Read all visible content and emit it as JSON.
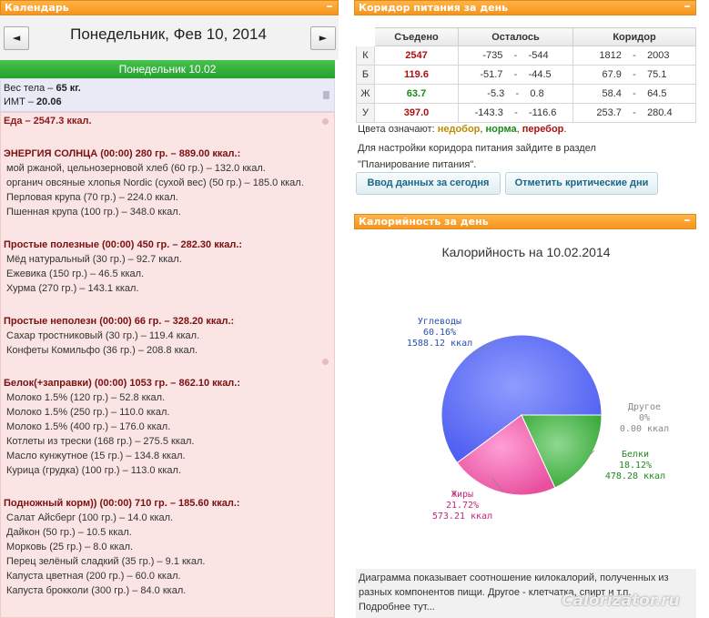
{
  "calendar_panel": {
    "title": "Календарь",
    "minimize": "–"
  },
  "nav": {
    "prev": "◄",
    "next": "►",
    "date_title": "Понедельник, Фев 10, 2014"
  },
  "day_bar": "Понедельник 10.02",
  "body": {
    "weight_label": "Вес тела – ",
    "weight_value": "65 кг.",
    "bmi_label": "ИМТ – ",
    "bmi_value": "20.06"
  },
  "food": {
    "total": "Еда – 2547.3 ккал.",
    "meals": [
      {
        "title": "ЭНЕРГИЯ СОЛНЦА (00:00) 280 гр. – 889.00 ккал.:",
        "items": [
          "мой ржаной, цельнозерновой хлеб (60 гр.) – 132.0 ккал.",
          "органич овсяные хлопья Nordic (сухой вес) (50 гр.) – 185.0 ккал.",
          "Перловая крупа (70 гр.) – 224.0 ккал.",
          "Пшенная крупа (100 гр.) – 348.0 ккал."
        ]
      },
      {
        "title": "Простые полезные (00:00) 450 гр. – 282.30 ккал.:",
        "items": [
          "Мёд натуральный (30 гр.) – 92.7 ккал.",
          "Ежевика (150 гр.) – 46.5 ккал.",
          "Хурма (270 гр.) – 143.1 ккал."
        ]
      },
      {
        "title": "Простые неполезн (00:00) 66 гр. – 328.20 ккал.:",
        "items": [
          "Сахар тростниковый (30 гр.) – 119.4 ккал.",
          "Конфеты Комильфо (36 гр.) – 208.8 ккал."
        ]
      },
      {
        "title": "Белок(+заправки) (00:00) 1053 гр. – 862.10 ккал.:",
        "items": [
          "Молоко 1.5% (120 гр.) – 52.8 ккал.",
          "Молоко 1.5% (250 гр.) – 110.0 ккал.",
          "Молоко 1.5% (400 гр.) – 176.0 ккал.",
          "Котлеты из трески (168 гр.) – 275.5 ккал.",
          "Масло кунжутное (15 гр.) – 134.8 ккал.",
          "Курица (грудка) (100 гр.) – 113.0 ккал."
        ]
      },
      {
        "title": "Подножный корм)) (00:00) 710 гр. – 185.60 ккал.:",
        "items": [
          "Салат Айсберг (100 гр.) – 14.0 ккал.",
          "Дайкон (50 гр.) – 10.5 ккал.",
          "Морковь (25 гр.) – 8.0 ккал.",
          "Перец зелёный сладкий (35 гр.) – 9.1 ккал.",
          "Капуста цветная (200 гр.) – 60.0 ккал.",
          "Капуста брокколи (300 гр.) – 84.0 ккал."
        ]
      }
    ]
  },
  "corridor_panel": {
    "title": "Коридор питания за день",
    "minimize": "–"
  },
  "corridor_table": {
    "headers": [
      "Съедено",
      "Осталось",
      "Коридор"
    ],
    "rows": [
      {
        "label": "К",
        "eaten": "2547",
        "eaten_color": "#b01010",
        "rem_min": "-735",
        "rem_max": "-544",
        "cor_min": "1812",
        "cor_max": "2003"
      },
      {
        "label": "Б",
        "eaten": "119.6",
        "eaten_color": "#b01010",
        "rem_min": "-51.7",
        "rem_max": "-44.5",
        "cor_min": "67.9",
        "cor_max": "75.1"
      },
      {
        "label": "Ж",
        "eaten": "63.7",
        "eaten_color": "#1a8a1a",
        "rem_min": "-5.3",
        "rem_max": "0.8",
        "cor_min": "58.4",
        "cor_max": "64.5"
      },
      {
        "label": "У",
        "eaten": "397.0",
        "eaten_color": "#b01010",
        "rem_min": "-143.3",
        "rem_max": "-116.6",
        "cor_min": "253.7",
        "cor_max": "280.4"
      }
    ],
    "dash": "-"
  },
  "legend": {
    "prefix": "Цвета означают: ",
    "under": "недобор",
    "under_color": "#c08a00",
    "norm": "норма",
    "norm_color": "#1a8a1a",
    "over": "перебор",
    "over_color": "#b01010",
    "sep": ", ",
    "end": "."
  },
  "hint": {
    "line1": "Для настройки коридора питания зайдите в раздел",
    "line2": "\"Планирование питания\"."
  },
  "buttons": {
    "enter_today": "Ввод данных за сегодня",
    "mark_days": "Отметить критические дни"
  },
  "calories_panel": {
    "title": "Калорийность за день",
    "minimize": "–"
  },
  "chart_data": {
    "type": "pie",
    "title": "Калорийность на 10.02.2014",
    "slices": [
      {
        "name": "Углеводы",
        "percent": 60.16,
        "pct_label": "60.16%",
        "kcal_label": "1588.12 ккал",
        "color": "#5f72ff"
      },
      {
        "name": "Белки",
        "percent": 18.12,
        "pct_label": "18.12%",
        "kcal_label": "478.28 ккал",
        "color": "#45b845"
      },
      {
        "name": "Жиры",
        "percent": 21.72,
        "pct_label": "21.72%",
        "kcal_label": "573.21 ккал",
        "color": "#f06ab9"
      },
      {
        "name": "Другое",
        "percent": 0,
        "pct_label": "0%",
        "kcal_label": "0.00 ккал",
        "color": "#999999"
      }
    ],
    "label_colors": {
      "Углеводы": "#2a4fb0",
      "Белки": "#228822",
      "Жиры": "#c2257a",
      "Другое": "#888888"
    }
  },
  "chart_foot": {
    "line1": "Диаграмма показывает соотношение килокалорий, полученных из",
    "line2": "разных компонентов пищи. Другое - клетчатка, спирт и т.п.",
    "line3": "Подробнее тут..."
  },
  "watermark": "Calorizator.ru"
}
